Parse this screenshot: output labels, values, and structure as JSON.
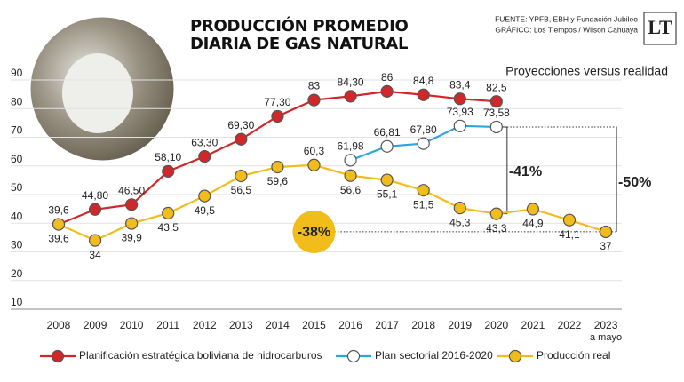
{
  "chart_data": {
    "type": "line",
    "title": "PRODUCCIÓN PROMEDIO DIARIA DE GAS NATURAL",
    "source": "FUENTE: YPFB, EBH y Fundación Jubileo",
    "credit": "GRÁFICO: Los Tiempos / Wilson Cahuaya",
    "logo": "LT",
    "subtitle": "Proyecciones versus realidad",
    "categories": [
      "2008",
      "2009",
      "2010",
      "2011",
      "2012",
      "2013",
      "2014",
      "2015",
      "2016",
      "2017",
      "2018",
      "2019",
      "2020",
      "2021",
      "2022",
      "2023"
    ],
    "last_category_note": "a mayo",
    "ylim": [
      10,
      90
    ],
    "yticks": [
      10,
      20,
      30,
      40,
      50,
      60,
      70,
      80,
      90
    ],
    "grid": true,
    "series": [
      {
        "name": "Planificación estratégica boliviana de hidrocarburos",
        "color": "#d0282a",
        "values": [
          39.6,
          44.8,
          46.5,
          58.1,
          63.3,
          69.3,
          77.3,
          83,
          84.3,
          86,
          84.8,
          83.4,
          82.5,
          null,
          null,
          null
        ],
        "value_labels": [
          "39,6",
          "44,80",
          "46,50",
          "58,10",
          "63,30",
          "69,30",
          "77,30",
          "83",
          "84,30",
          "86",
          "84,8",
          "83,4",
          "82,5",
          null,
          null,
          null
        ]
      },
      {
        "name": "Plan sectorial 2016-2020",
        "color": "#2aa7d8",
        "values": [
          null,
          null,
          null,
          null,
          null,
          null,
          null,
          null,
          61.98,
          66.81,
          67.8,
          73.93,
          73.58,
          null,
          null,
          null
        ],
        "value_labels": [
          null,
          null,
          null,
          null,
          null,
          null,
          null,
          null,
          "61,98",
          "66,81",
          "67,80",
          "73,93",
          "73,58",
          null,
          null,
          null
        ]
      },
      {
        "name": "Producción real",
        "color": "#f2bd1b",
        "values": [
          39.6,
          34,
          39.9,
          43.5,
          49.5,
          56.5,
          59.6,
          60.3,
          56.6,
          55.1,
          51.5,
          45.3,
          43.3,
          44.9,
          41.1,
          37
        ],
        "value_labels": [
          "39,6",
          "34",
          "39,9",
          "43,5",
          "49,5",
          "56,5",
          "59,6",
          "60,3",
          "56,6",
          "55,1",
          "51,5",
          "45,3",
          "43,3",
          "44,9",
          "41,1",
          "37"
        ]
      }
    ],
    "annotations": [
      "-41%",
      "-50%",
      "-38%"
    ]
  }
}
